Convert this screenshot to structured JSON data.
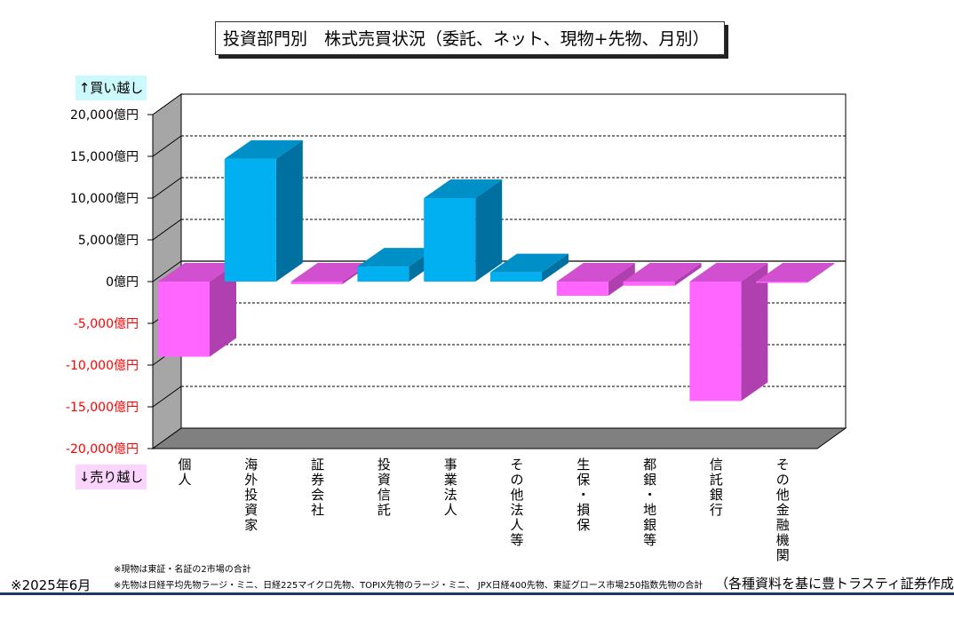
{
  "title": "投資部門別　株式売買状況（委託、ネット、現物+先物、月別）",
  "buy_label": "↑買い越し",
  "sell_label": "↓売り越し",
  "notes": [
    "※現物は東証・名証の2市場の合計",
    "※先物は日経平均先物ラージ・ミニ、日経225マイクロ先物、TOPIX先物のラージ・ミニ、 JPX日経400先物、東証グロース市場250指数先物の合計"
  ],
  "date_label": "※2025年6月",
  "source_label": "（各種資料を基に豊トラスティ証券作成）",
  "colors": {
    "positive_front": "#00b0f0",
    "positive_side": "#0070a0",
    "positive_top": "#0090c8",
    "negative_front": "#ff66ff",
    "negative_side": "#b040b0",
    "negative_top": "#d050d0",
    "negative_tick": "#ff0000",
    "wall": "#a6a6a6",
    "floor": "#808080"
  },
  "chart_data": {
    "type": "bar",
    "categories": [
      "個人",
      "海外投資家",
      "証券会社",
      "投資信託",
      "事業法人",
      "その他法人等",
      "生保・損保",
      "都銀・地銀等",
      "信託銀行",
      "その他金融機関"
    ],
    "values": [
      -9000,
      14700,
      -300,
      1800,
      10000,
      1100,
      -1700,
      -500,
      -14300,
      -100
    ],
    "ylim": [
      -20000,
      20000
    ],
    "yticks": [
      "20,000億円",
      "15,000億円",
      "10,000億円",
      "5,000億円",
      "0億円",
      "-5,000億円",
      "-10,000億円",
      "-15,000億円",
      "-20,000億円"
    ],
    "grid": true
  }
}
